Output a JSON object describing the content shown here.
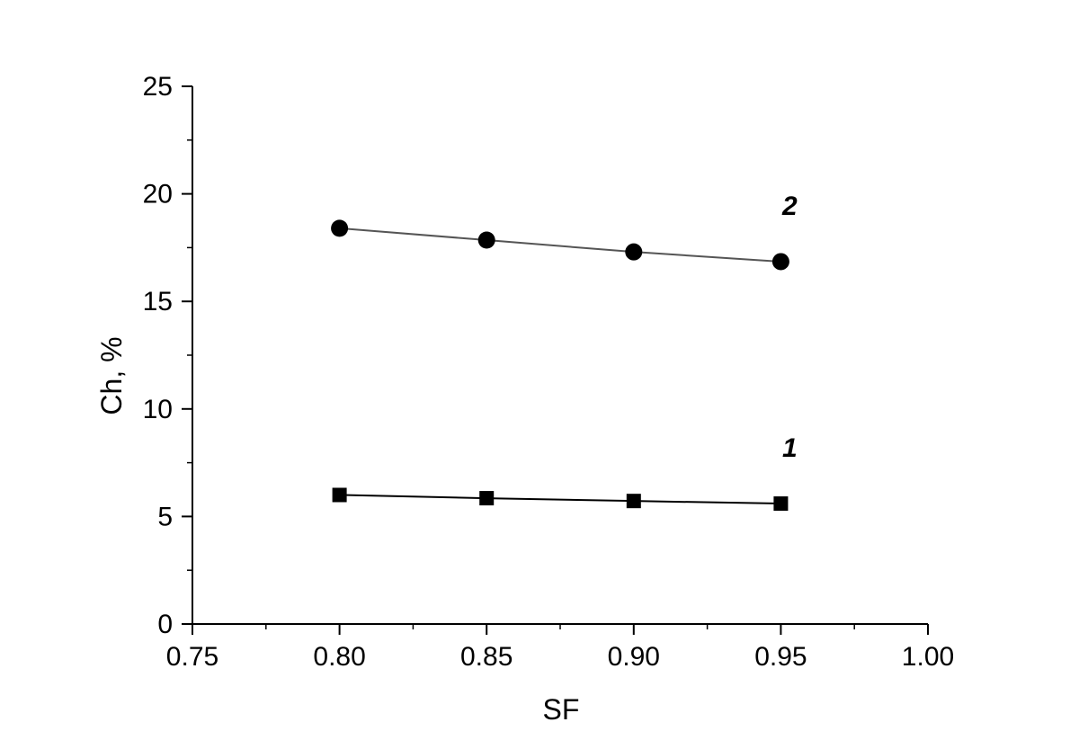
{
  "chart_data": {
    "type": "scatter",
    "title": "",
    "xlabel": "SF",
    "ylabel": "Ch, %",
    "xlim": [
      0.75,
      1.0
    ],
    "ylim": [
      0,
      25
    ],
    "x_ticks": [
      "0.75",
      "0.80",
      "0.85",
      "0.90",
      "0.95",
      "1.00"
    ],
    "y_ticks": [
      "0",
      "5",
      "10",
      "15",
      "20",
      "25"
    ],
    "grid": false,
    "series": [
      {
        "label": "1",
        "marker": "square",
        "color": "#000000",
        "line_color": "#000000",
        "x": [
          0.8,
          0.85,
          0.9,
          0.95
        ],
        "y": [
          6.0,
          5.85,
          5.72,
          5.6
        ]
      },
      {
        "label": "2",
        "marker": "circle",
        "color": "#000000",
        "line_color": "#555555",
        "x": [
          0.8,
          0.85,
          0.9,
          0.95
        ],
        "y": [
          18.4,
          17.85,
          17.3,
          16.85
        ]
      }
    ]
  }
}
